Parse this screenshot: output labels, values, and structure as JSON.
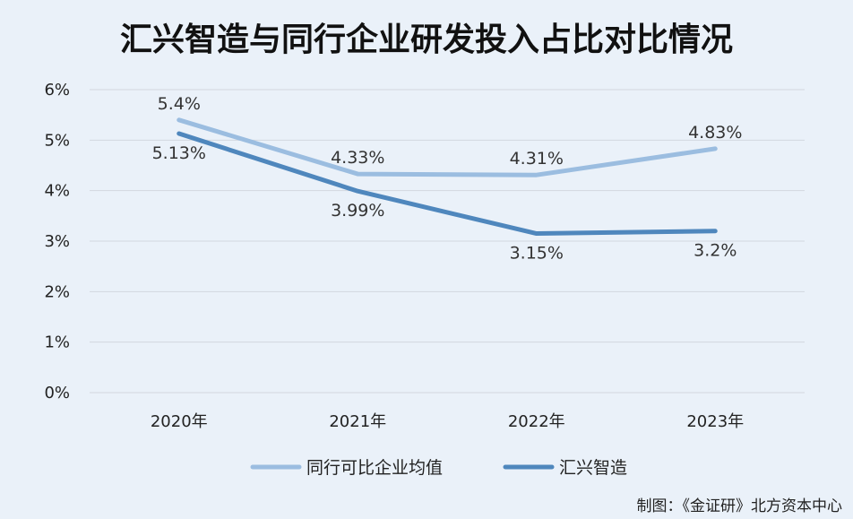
{
  "chart_data": {
    "type": "line",
    "title": "汇兴智造与同行企业研发投入占比对比情况",
    "categories": [
      "2020年",
      "2021年",
      "2022年",
      "2023年"
    ],
    "y_ticks": [
      "0%",
      "1%",
      "2%",
      "3%",
      "4%",
      "5%",
      "6%"
    ],
    "ylim": [
      0,
      6
    ],
    "grid": true,
    "legend_position": "bottom",
    "series": [
      {
        "name": "同行可比企业均值",
        "values": [
          5.4,
          4.33,
          4.31,
          4.83
        ],
        "labels": [
          "5.4%",
          "4.33%",
          "4.31%",
          "4.83%"
        ],
        "color": "#9bbde0"
      },
      {
        "name": "汇兴智造",
        "values": [
          5.13,
          3.99,
          3.15,
          3.2
        ],
        "labels": [
          "5.13%",
          "3.99%",
          "3.15%",
          "3.2%"
        ],
        "color": "#4f87bd"
      }
    ]
  },
  "credit": "制图：《金证研》北方资本中心"
}
